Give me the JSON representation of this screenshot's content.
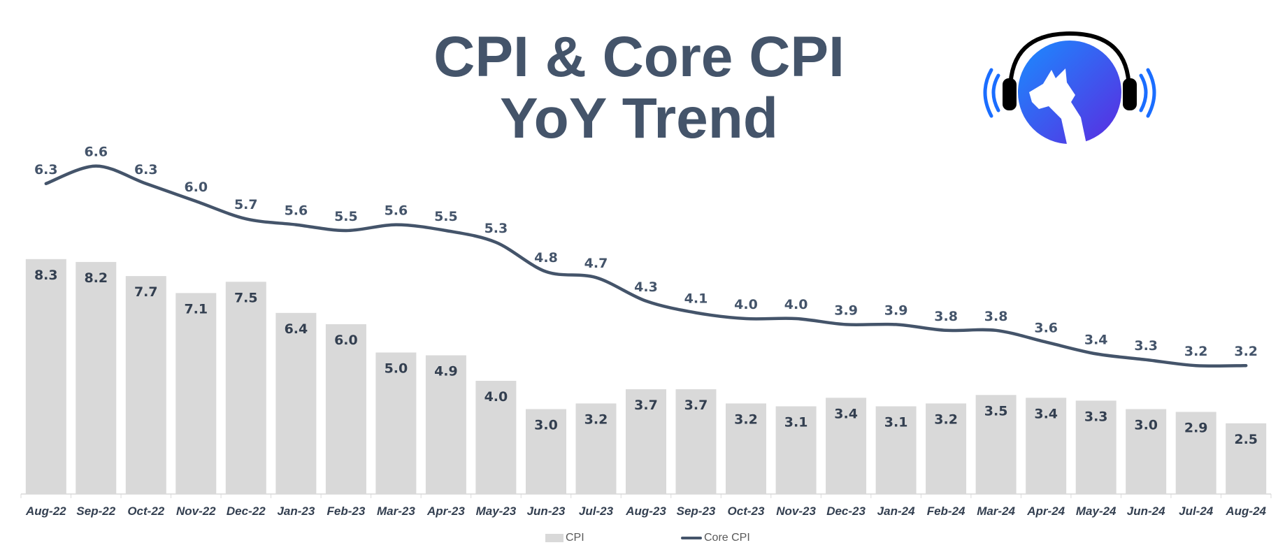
{
  "title": {
    "line1": "CPI & Core CPI",
    "line2": "YoY Trend"
  },
  "colors": {
    "title": "#44546a",
    "bar": "#d9d9d9",
    "line": "#44546a",
    "label": "#333f50",
    "logo_blue": "#1a6dff",
    "logo_purple": "#5b2be0"
  },
  "logo": {
    "icon": "wolf-headphones-logo-icon"
  },
  "chart_data": {
    "type": "bar",
    "categories": [
      "Aug-22",
      "Sep-22",
      "Oct-22",
      "Nov-22",
      "Dec-22",
      "Jan-23",
      "Feb-23",
      "Mar-23",
      "Apr-23",
      "May-23",
      "Jun-23",
      "Jul-23",
      "Aug-23",
      "Sep-23",
      "Oct-23",
      "Nov-23",
      "Dec-23",
      "Jan-24",
      "Feb-24",
      "Mar-24",
      "Apr-24",
      "May-24",
      "Jun-24",
      "Jul-24",
      "Aug-24"
    ],
    "series": [
      {
        "name": "CPI",
        "kind": "bar",
        "values": [
          8.3,
          8.2,
          7.7,
          7.1,
          7.5,
          6.4,
          6.0,
          5.0,
          4.9,
          4.0,
          3.0,
          3.2,
          3.7,
          3.7,
          3.2,
          3.1,
          3.4,
          3.1,
          3.2,
          3.5,
          3.4,
          3.3,
          3.0,
          2.9,
          2.5
        ],
        "labels": [
          "8.3",
          "8.2",
          "7.7",
          "7.1",
          "7.5",
          "6.4",
          "6.0",
          "5.0",
          "4.9",
          "4.0",
          "3.0",
          "3.2",
          "3.7",
          "3.7",
          "3.2",
          "3.1",
          "3.4",
          "3.1",
          "3.2",
          "3.5",
          "3.4",
          "3.3",
          "3.0",
          "2.9",
          "2.5"
        ]
      },
      {
        "name": "Core CPI",
        "kind": "line",
        "values": [
          6.3,
          6.6,
          6.3,
          6.0,
          5.7,
          5.6,
          5.5,
          5.6,
          5.5,
          5.3,
          4.8,
          4.7,
          4.3,
          4.1,
          4.0,
          4.0,
          3.9,
          3.9,
          3.8,
          3.8,
          3.6,
          3.4,
          3.3,
          3.2,
          3.2
        ],
        "labels": [
          "6.3",
          "6.6",
          "6.3",
          "6.0",
          "5.7",
          "5.6",
          "5.5",
          "5.6",
          "5.5",
          "5.3",
          "4.8",
          "4.7",
          "4.3",
          "4.1",
          "4.0",
          "4.0",
          "3.9",
          "3.9",
          "3.8",
          "3.8",
          "3.6",
          "3.4",
          "3.3",
          "3.2",
          "3.2"
        ]
      }
    ],
    "title": "CPI & Core CPI YoY Trend",
    "xlabel": "",
    "ylabel": "",
    "legend": {
      "position": "bottom",
      "entries": [
        "CPI",
        "Core CPI"
      ]
    }
  }
}
